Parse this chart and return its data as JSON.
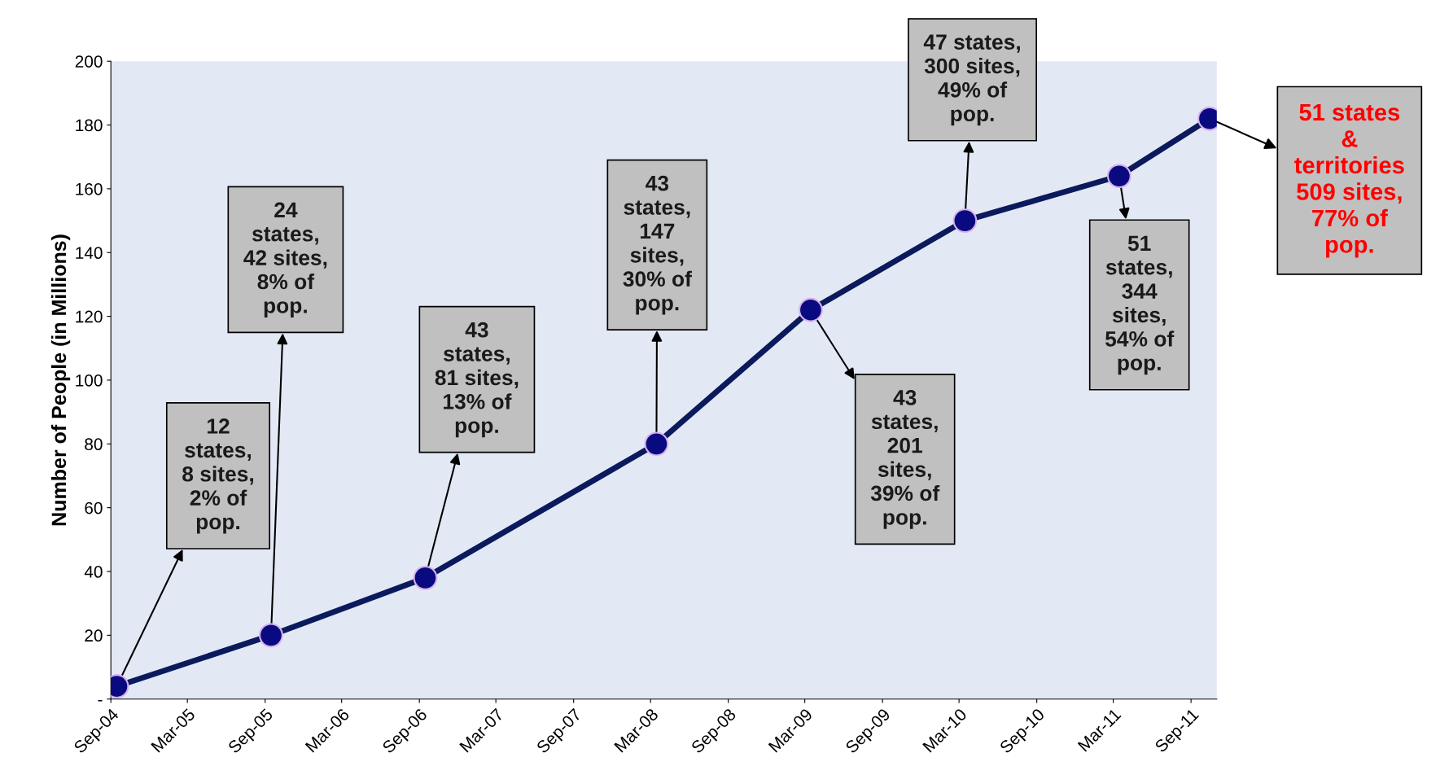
{
  "chart_data": {
    "type": "line",
    "ylabel": "Number of People (in Millions)",
    "x": [
      "2004-09-15",
      "2005-09-15",
      "2006-09-15",
      "2008-03-15",
      "2009-03-15",
      "2010-03-15",
      "2011-03-15",
      "2011-10-15"
    ],
    "series": [
      {
        "color": "#0b1a5c",
        "values": [
          4,
          20,
          38,
          80,
          122,
          150,
          164,
          182
        ]
      }
    ],
    "marker": "circle",
    "line_style": "solid",
    "grid": false,
    "legend": false,
    "xlim": [
      "2004-09-01",
      "2011-11-01"
    ],
    "xticks": [
      {
        "value": "2004-09-01",
        "label": "Sep-04"
      },
      {
        "value": "2005-03-01",
        "label": "Mar-05"
      },
      {
        "value": "2005-09-01",
        "label": "Sep-05"
      },
      {
        "value": "2006-03-01",
        "label": "Mar-06"
      },
      {
        "value": "2006-09-01",
        "label": "Sep-06"
      },
      {
        "value": "2007-03-01",
        "label": "Mar-07"
      },
      {
        "value": "2007-09-01",
        "label": "Sep-07"
      },
      {
        "value": "2008-03-01",
        "label": "Mar-08"
      },
      {
        "value": "2008-09-01",
        "label": "Sep-08"
      },
      {
        "value": "2009-03-01",
        "label": "Mar-09"
      },
      {
        "value": "2009-09-01",
        "label": "Sep-09"
      },
      {
        "value": "2010-03-01",
        "label": "Mar-10"
      },
      {
        "value": "2010-09-01",
        "label": "Sep-10"
      },
      {
        "value": "2011-03-01",
        "label": "Mar-11"
      },
      {
        "value": "2011-09-01",
        "label": "Sep-11"
      }
    ],
    "ylim": [
      0,
      200
    ],
    "yticks": [
      {
        "value": 0,
        "label": "-"
      },
      20,
      40,
      60,
      80,
      100,
      120,
      140,
      160,
      180,
      200
    ],
    "annotations": [
      {
        "text": "12\nstates,\n8 sites,\n2% of\npop.",
        "x": "2004-09-15",
        "y": 4
      },
      {
        "text": "24\nstates,\n42 sites,\n8% of\npop.",
        "x": "2005-09-15",
        "y": 20
      },
      {
        "text": "43\nstates,\n81 sites,\n13% of\npop.",
        "x": "2006-09-15",
        "y": 38
      },
      {
        "text": "43\nstates,\n147\nsites,\n30% of\npop.",
        "x": "2008-03-15",
        "y": 80
      },
      {
        "text": "43\nstates,\n201\nsites,\n39% of\npop.",
        "x": "2009-03-15",
        "y": 122
      },
      {
        "text": "47 states,\n300 sites,\n49% of\npop.",
        "x": "2010-03-15",
        "y": 150
      },
      {
        "text": "51\nstates,\n344\nsites,\n54% of\npop.",
        "x": "2011-03-15",
        "y": 164
      },
      {
        "text": "51 states\n&\nterritories\n509 sites,\n77% of\npop.",
        "x": "2011-10-15",
        "y": 182
      }
    ]
  }
}
